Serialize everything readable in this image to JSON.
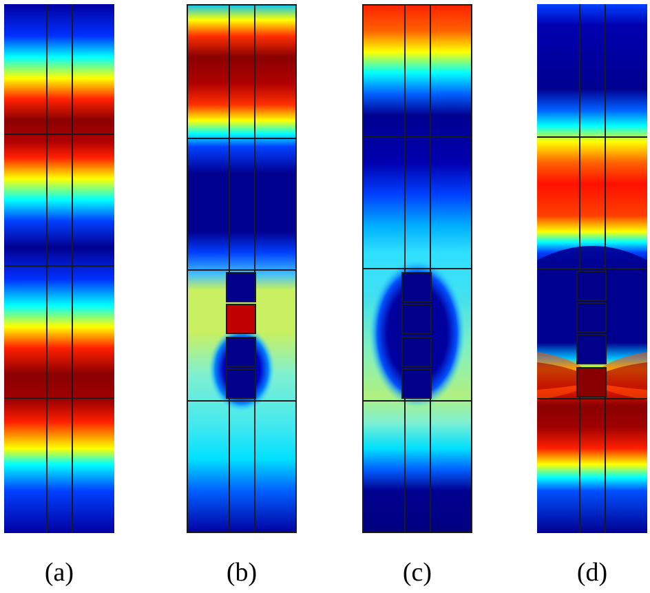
{
  "figure": {
    "panels": [
      {
        "id": "a",
        "caption": "(a)"
      },
      {
        "id": "b",
        "caption": "(b)"
      },
      {
        "id": "c",
        "caption": "(c)"
      },
      {
        "id": "d",
        "caption": "(d)"
      }
    ]
  },
  "colormap": {
    "name": "jet",
    "colors": [
      "#00007f",
      "#0000ff",
      "#00ffff",
      "#ffff00",
      "#ff0000",
      "#7f0000"
    ]
  }
}
